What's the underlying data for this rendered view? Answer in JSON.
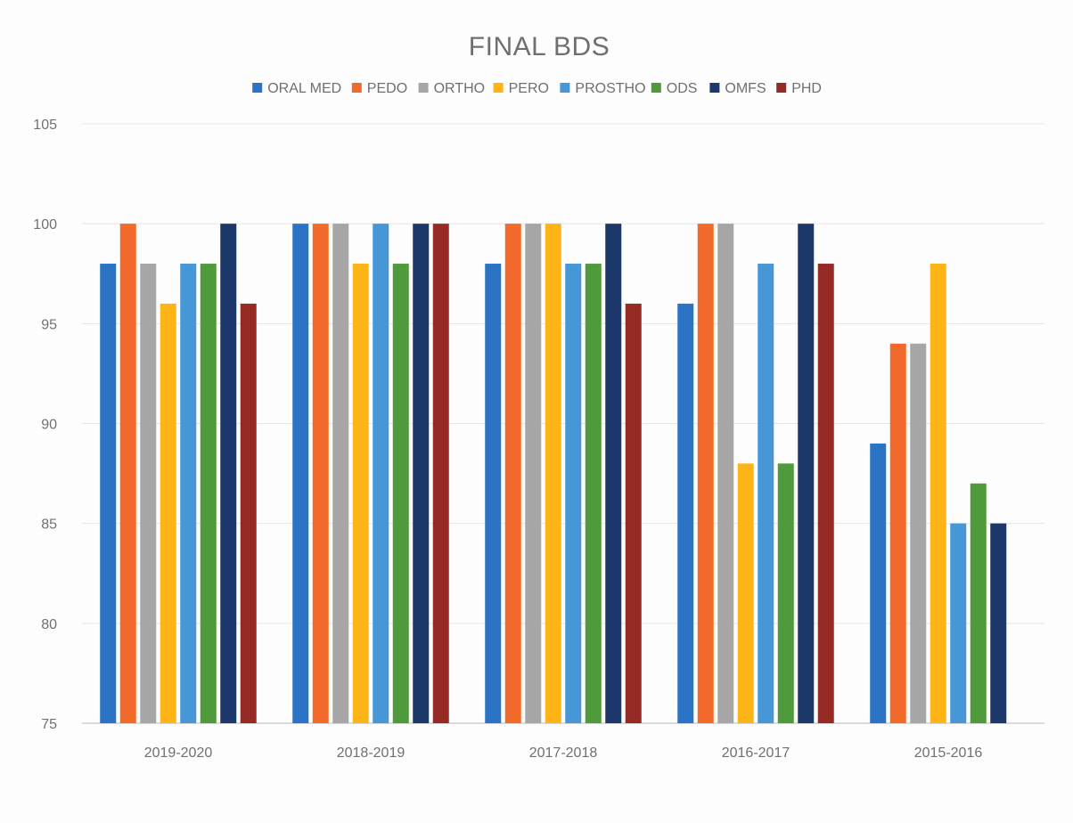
{
  "chart_data": {
    "type": "bar",
    "title": "FINAL BDS",
    "xlabel": "",
    "ylabel": "",
    "categories": [
      "2019-2020",
      "2018-2019",
      "2017-2018",
      "2016-2017",
      "2015-2016"
    ],
    "ylim": [
      75,
      105
    ],
    "yticks": [
      75,
      80,
      85,
      90,
      95,
      100,
      105
    ],
    "grid": true,
    "legend_position": "top",
    "series": [
      {
        "name": "ORAL MED",
        "color": "#2a73c5",
        "values": [
          98,
          100,
          98,
          96,
          89
        ]
      },
      {
        "name": "PEDO",
        "color": "#f26a2b",
        "values": [
          100,
          100,
          100,
          100,
          94
        ]
      },
      {
        "name": "ORTHO",
        "color": "#a6a6a6",
        "values": [
          98,
          100,
          100,
          100,
          94
        ]
      },
      {
        "name": "PERO",
        "color": "#fdb417",
        "values": [
          96,
          98,
          100,
          88,
          98
        ]
      },
      {
        "name": "PROSTHO",
        "color": "#4796d6",
        "values": [
          98,
          100,
          98,
          98,
          85
        ]
      },
      {
        "name": "ODS",
        "color": "#4f9a3a",
        "values": [
          98,
          98,
          98,
          88,
          87
        ]
      },
      {
        "name": "OMFS",
        "color": "#1c3769",
        "values": [
          100,
          100,
          100,
          100,
          85
        ]
      },
      {
        "name": "PHD",
        "color": "#962b26",
        "values": [
          96,
          100,
          96,
          98,
          null
        ]
      }
    ]
  }
}
